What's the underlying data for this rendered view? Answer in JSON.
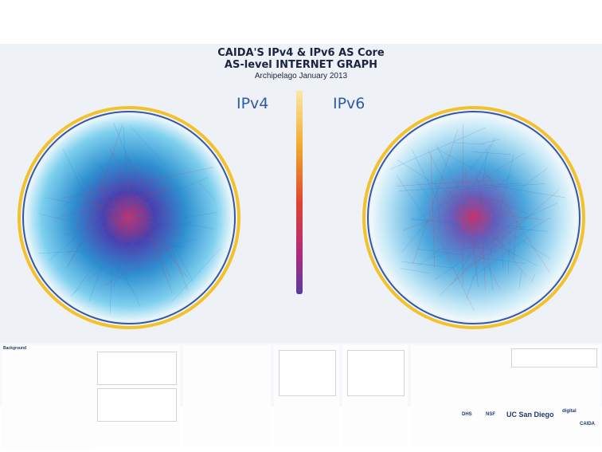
{
  "title": {
    "line1": "CAIDA'S IPv4 & IPv6 AS Core",
    "line2": "AS-level INTERNET GRAPH",
    "line3": "Archipelago January 2013"
  },
  "labels": {
    "ipv4": "IPv4",
    "ipv6": "IPv6"
  },
  "colors": {
    "ring_yellow": "#f3c12a",
    "ring_blue": "#2f5aa8",
    "link_blue": "#3fb0dc",
    "core_red": "#d8323c",
    "core_purple": "#6a3aa8",
    "background": "#eef1f6"
  },
  "footer": {
    "intro_head": "Background",
    "logos": [
      "UC San Diego",
      "DHS",
      "NSF",
      "CAIDA",
      "digital"
    ]
  }
}
